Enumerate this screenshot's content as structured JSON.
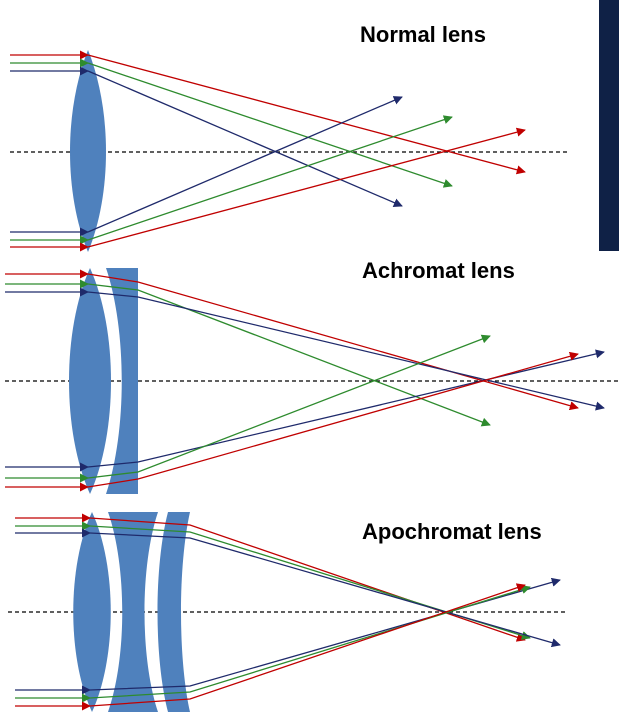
{
  "panels": [
    {
      "title": "Normal lens",
      "lens_type": "single convex lens",
      "ray_colors": [
        "red",
        "green",
        "blue"
      ]
    },
    {
      "title": "Achromat lens",
      "lens_type": "convex + concave doublet",
      "ray_colors": [
        "red",
        "green",
        "blue"
      ]
    },
    {
      "title": "Apochromat lens",
      "lens_type": "convex + two concave triplet",
      "ray_colors": [
        "red",
        "green",
        "blue"
      ]
    }
  ],
  "colors": {
    "lens": "#4f81bd",
    "red_ray": "#c00000",
    "green_ray": "#2e8b2e",
    "blue_ray": "#1f2a6b",
    "axis": "#000000",
    "side_bar": "#0f2146"
  }
}
